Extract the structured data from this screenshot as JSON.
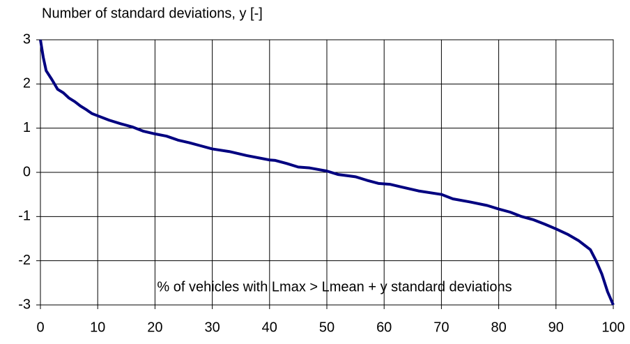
{
  "chart_data": {
    "type": "line",
    "title": "Number of standard deviations, y  [-]",
    "annotation": "% of vehicles  with Lmax > Lmean + y standard deviations",
    "x": [
      0,
      0.5,
      1,
      2,
      3,
      4,
      5,
      6,
      7,
      8,
      9,
      10,
      12,
      14,
      16,
      18,
      20,
      22,
      24,
      26,
      28,
      30,
      33,
      36,
      40,
      41,
      43,
      45,
      47,
      50,
      52,
      55,
      57,
      59,
      61,
      63,
      66,
      70,
      72,
      75,
      78,
      80,
      82,
      84,
      86,
      88,
      90,
      92,
      94,
      95,
      96,
      97,
      98,
      99,
      100
    ],
    "series": [
      {
        "color": "#000080",
        "values": [
          3,
          2.6,
          2.3,
          2.1,
          1.88,
          1.8,
          1.68,
          1.6,
          1.5,
          1.42,
          1.33,
          1.28,
          1.18,
          1.1,
          1.03,
          0.93,
          0.87,
          0.82,
          0.73,
          0.67,
          0.6,
          0.53,
          0.47,
          0.38,
          0.28,
          0.27,
          0.2,
          0.12,
          0.1,
          0.03,
          -0.05,
          -0.1,
          -0.18,
          -0.25,
          -0.27,
          -0.33,
          -0.42,
          -0.5,
          -0.6,
          -0.67,
          -0.75,
          -0.83,
          -0.9,
          -1.0,
          -1.07,
          -1.17,
          -1.28,
          -1.4,
          -1.55,
          -1.65,
          -1.75,
          -2.0,
          -2.3,
          -2.7,
          -3
        ]
      }
    ],
    "xlim": [
      0,
      100
    ],
    "xticks": [
      0,
      10,
      20,
      30,
      40,
      50,
      60,
      70,
      80,
      90,
      100
    ],
    "ylim": [
      -3,
      3
    ],
    "yticks": [
      -3,
      -2,
      -1,
      0,
      1,
      2,
      3
    ],
    "grid": true
  }
}
